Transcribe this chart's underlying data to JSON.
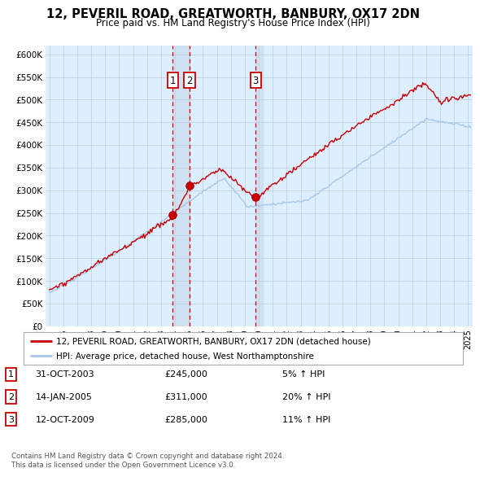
{
  "title": "12, PEVERIL ROAD, GREATWORTH, BANBURY, OX17 2DN",
  "subtitle": "Price paid vs. HM Land Registry's House Price Index (HPI)",
  "legend_line1": "12, PEVERIL ROAD, GREATWORTH, BANBURY, OX17 2DN (detached house)",
  "legend_line2": "HPI: Average price, detached house, West Northamptonshire",
  "footnote1": "Contains HM Land Registry data © Crown copyright and database right 2024.",
  "footnote2": "This data is licensed under the Open Government Licence v3.0.",
  "transactions": [
    {
      "num": 1,
      "date": "31-OCT-2003",
      "price": "£245,000",
      "hpi": "5% ↑ HPI",
      "year": 2003.83
    },
    {
      "num": 2,
      "date": "14-JAN-2005",
      "price": "£311,000",
      "hpi": "20% ↑ HPI",
      "year": 2005.04
    },
    {
      "num": 3,
      "date": "12-OCT-2009",
      "price": "£285,000",
      "hpi": "11% ↑ HPI",
      "year": 2009.78
    }
  ],
  "transaction_prices": [
    245000,
    311000,
    285000
  ],
  "hpi_color": "#a8c8e8",
  "price_color": "#cc0000",
  "background_color": "#ddeeff",
  "grid_color": "#bbccdd",
  "vline_color": "#dd0000",
  "shade_color": "#c8ddf0",
  "ylim": [
    0,
    620000
  ],
  "yticks": [
    0,
    50000,
    100000,
    150000,
    200000,
    250000,
    300000,
    350000,
    400000,
    450000,
    500000,
    550000,
    600000
  ],
  "xlim_start": 1994.7,
  "xlim_end": 2025.3,
  "xticks": [
    1995,
    1996,
    1997,
    1998,
    1999,
    2000,
    2001,
    2002,
    2003,
    2004,
    2005,
    2006,
    2007,
    2008,
    2009,
    2010,
    2011,
    2012,
    2013,
    2014,
    2015,
    2016,
    2017,
    2018,
    2019,
    2020,
    2021,
    2022,
    2023,
    2024,
    2025
  ]
}
